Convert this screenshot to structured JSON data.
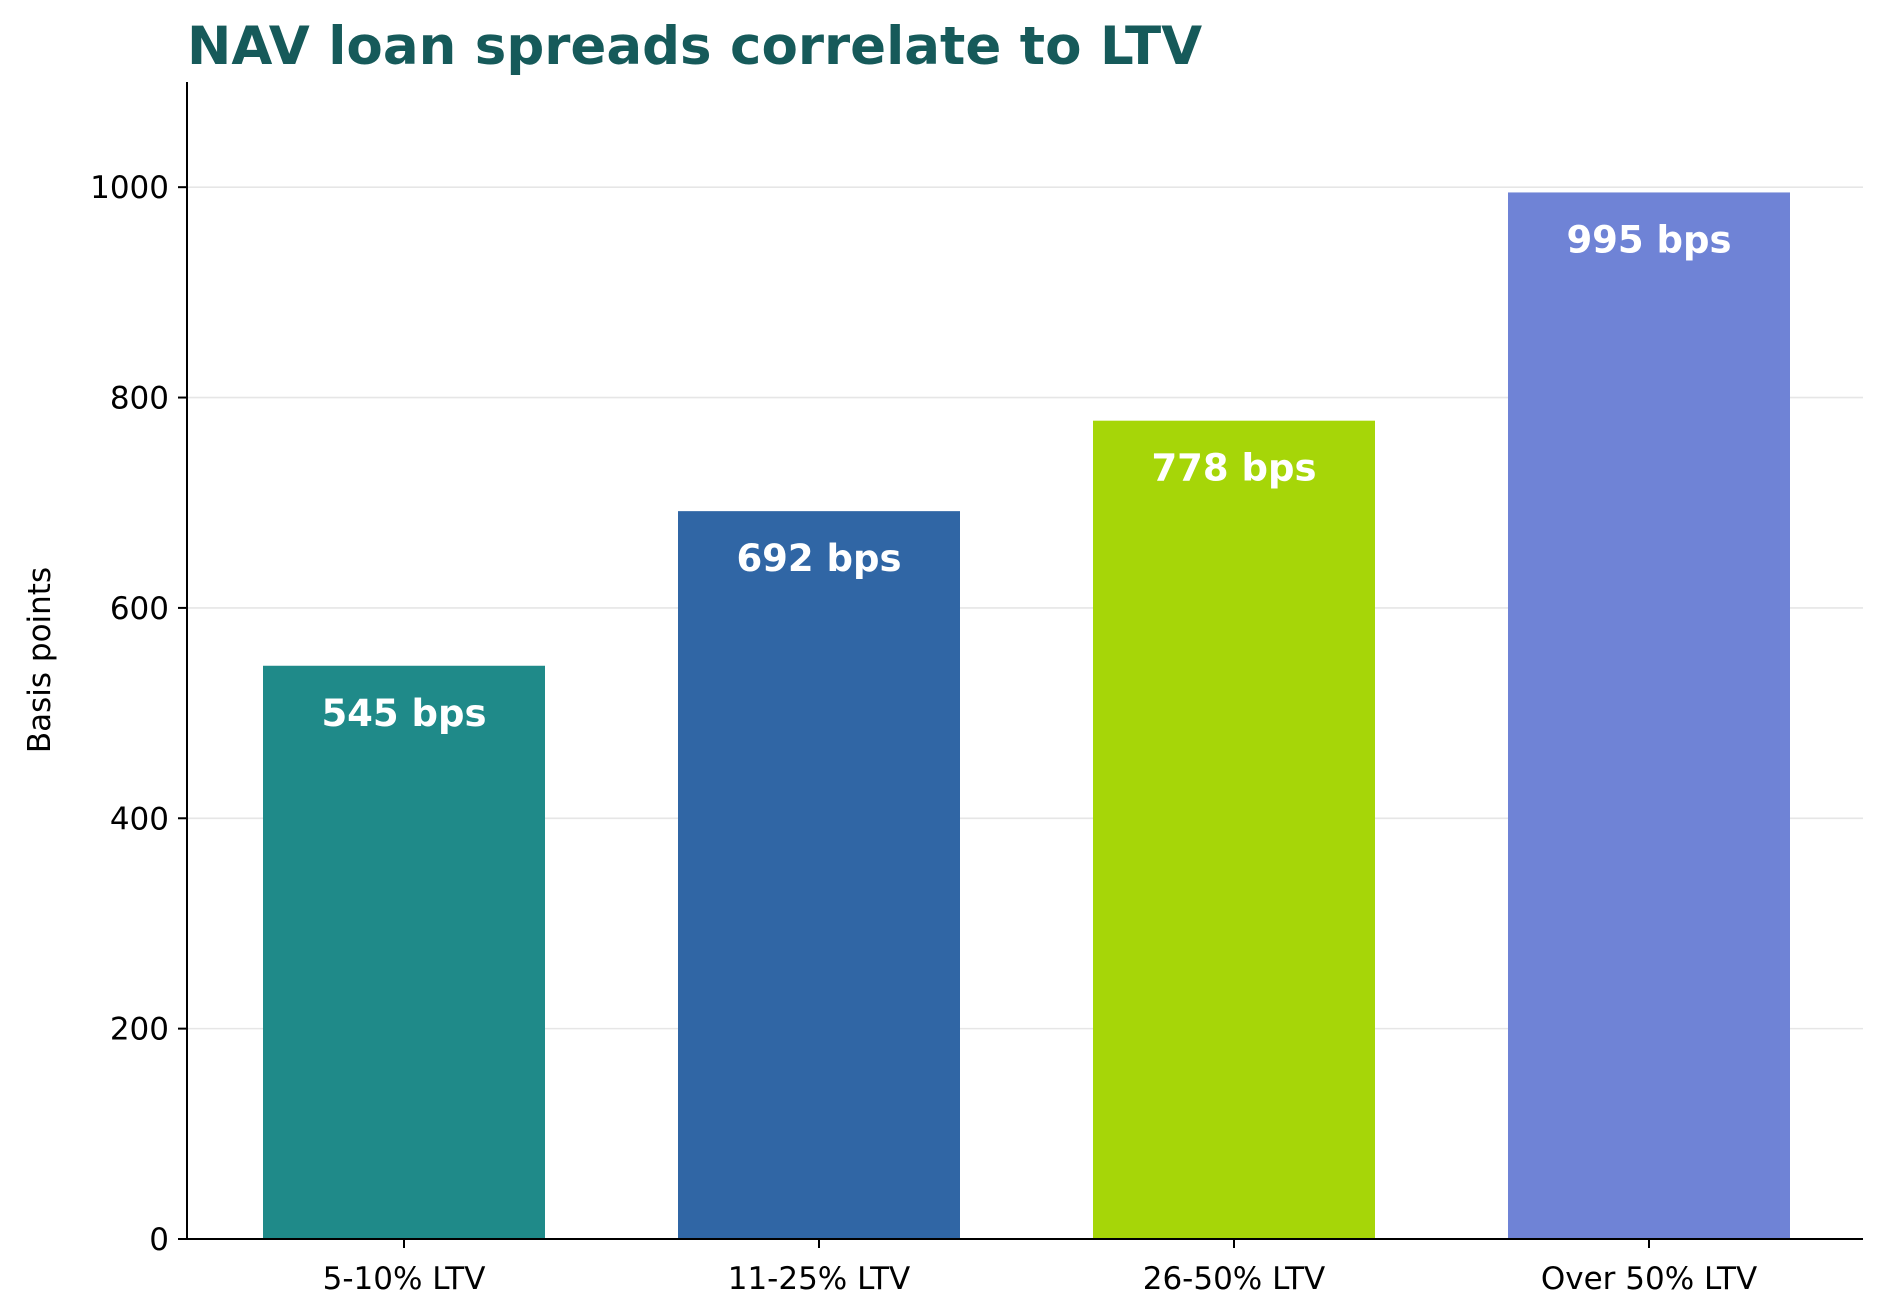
{
  "chart_data": {
    "type": "bar",
    "title": "NAV loan spreads correlate to LTV",
    "xlabel": "",
    "ylabel": "Basis points",
    "categories": [
      "5-10% LTV",
      "11-25% LTV",
      "26-50% LTV",
      "Over 50% LTV"
    ],
    "values": [
      545,
      692,
      778,
      995
    ],
    "value_labels": [
      "545 bps",
      "692 bps",
      "778 bps",
      "995 bps"
    ],
    "colors": [
      "#1F8A89",
      "#3066A5",
      "#A6D608",
      "#6F83D6"
    ],
    "ylim": [
      0,
      1100
    ],
    "yticks": [
      0,
      200,
      400,
      600,
      800,
      1000
    ],
    "grid": "y-axis",
    "legend": "none",
    "title_color": "#165A5A"
  }
}
